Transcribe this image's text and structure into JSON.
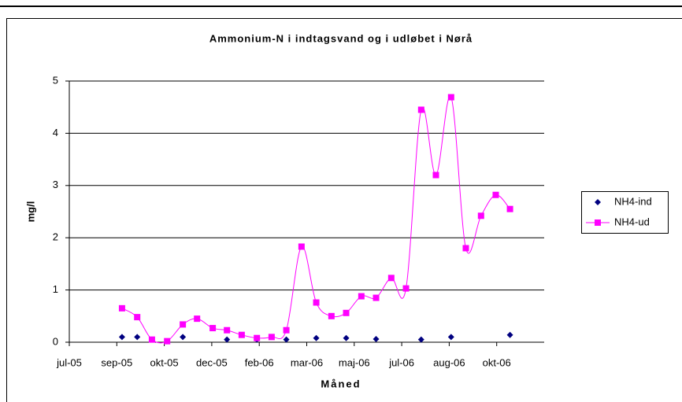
{
  "chart_data": {
    "type": "line",
    "title": "Ammonium-N i indtagsvand og i udløbet i Nørå",
    "x_label": "Måned",
    "y_label": "mg/l",
    "xlim": [
      0,
      10
    ],
    "xticks": [
      {
        "value": 0,
        "label": "jul-05"
      },
      {
        "value": 1,
        "label": "sep-05"
      },
      {
        "value": 2,
        "label": "okt-05"
      },
      {
        "value": 3,
        "label": "dec-05"
      },
      {
        "value": 4,
        "label": "feb-06"
      },
      {
        "value": 5,
        "label": "mar-06"
      },
      {
        "value": 6,
        "label": "maj-06"
      },
      {
        "value": 7,
        "label": "jul-06"
      },
      {
        "value": 8,
        "label": "aug-06"
      },
      {
        "value": 9,
        "label": "okt-06"
      }
    ],
    "ylim": [
      0,
      5
    ],
    "yticks": [
      0,
      1,
      2,
      3,
      4,
      5
    ],
    "grid": true,
    "legend": "right",
    "series": [
      {
        "name": "NH4-ind",
        "color": "#000080",
        "marker": "diamond",
        "line": false,
        "x": [
          1.11,
          1.43,
          2.39,
          3.32,
          3.95,
          4.57,
          5.2,
          5.83,
          6.46,
          7.41,
          8.04,
          9.28
        ],
        "values": [
          0.1,
          0.1,
          0.1,
          0.05,
          0.05,
          0.05,
          0.08,
          0.08,
          0.06,
          0.05,
          0.1,
          0.14
        ]
      },
      {
        "name": "NH4-ud",
        "color": "#ff00ff",
        "marker": "square",
        "line": true,
        "x": [
          1.11,
          1.43,
          1.74,
          2.06,
          2.39,
          2.69,
          3.02,
          3.32,
          3.63,
          3.95,
          4.26,
          4.57,
          4.89,
          5.2,
          5.52,
          5.83,
          6.15,
          6.46,
          6.78,
          7.09,
          7.41,
          7.72,
          8.04,
          8.35,
          8.67,
          8.98,
          9.28
        ],
        "values": [
          0.65,
          0.48,
          0.05,
          0.02,
          0.34,
          0.45,
          0.27,
          0.23,
          0.14,
          0.08,
          0.1,
          0.23,
          1.83,
          0.76,
          0.5,
          0.56,
          0.88,
          0.85,
          1.23,
          1.03,
          4.45,
          3.2,
          4.69,
          1.8,
          2.42,
          2.82,
          2.55
        ]
      }
    ]
  }
}
